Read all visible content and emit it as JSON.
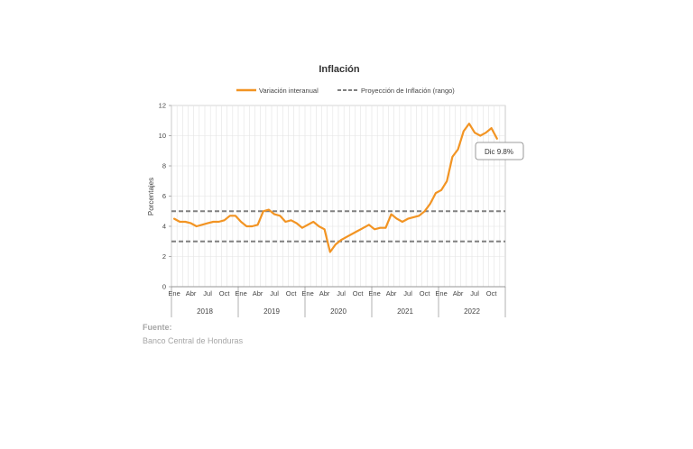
{
  "chart_data": {
    "type": "line",
    "title": "Inflación",
    "ylabel": "Porcentajes",
    "xlabel": "",
    "ylim": [
      0,
      12
    ],
    "yticks": [
      0,
      2,
      4,
      6,
      8,
      10,
      12
    ],
    "x_tick_labels": [
      "Ene",
      "Abr",
      "Jul",
      "Oct"
    ],
    "years": [
      "2018",
      "2019",
      "2020",
      "2021",
      "2022"
    ],
    "grid": true,
    "legend_position": "top",
    "series": [
      {
        "name": "Variación interanual",
        "color": "#f29423",
        "style": "solid",
        "values": [
          4.5,
          4.3,
          4.3,
          4.2,
          4.0,
          4.1,
          4.2,
          4.3,
          4.3,
          4.4,
          4.7,
          4.7,
          4.3,
          4.0,
          4.0,
          4.1,
          5.0,
          5.1,
          4.8,
          4.7,
          4.3,
          4.4,
          4.2,
          3.9,
          4.1,
          4.3,
          4.0,
          3.8,
          2.3,
          2.8,
          3.1,
          3.3,
          3.5,
          3.7,
          3.9,
          4.1,
          3.8,
          3.9,
          3.9,
          4.8,
          4.5,
          4.3,
          4.5,
          4.6,
          4.7,
          5.0,
          5.5,
          6.2,
          6.4,
          7.0,
          8.6,
          9.1,
          10.3,
          10.8,
          10.2,
          10.0,
          10.2,
          10.5,
          9.8
        ]
      },
      {
        "name": "Proyección de Inflación (rango)",
        "color": "#808080",
        "style": "dashed",
        "values": [
          3,
          5
        ]
      }
    ],
    "annotation": "Dic 9.8%"
  },
  "source": {
    "label": "Fuente:",
    "text": "Banco Central de Honduras"
  }
}
